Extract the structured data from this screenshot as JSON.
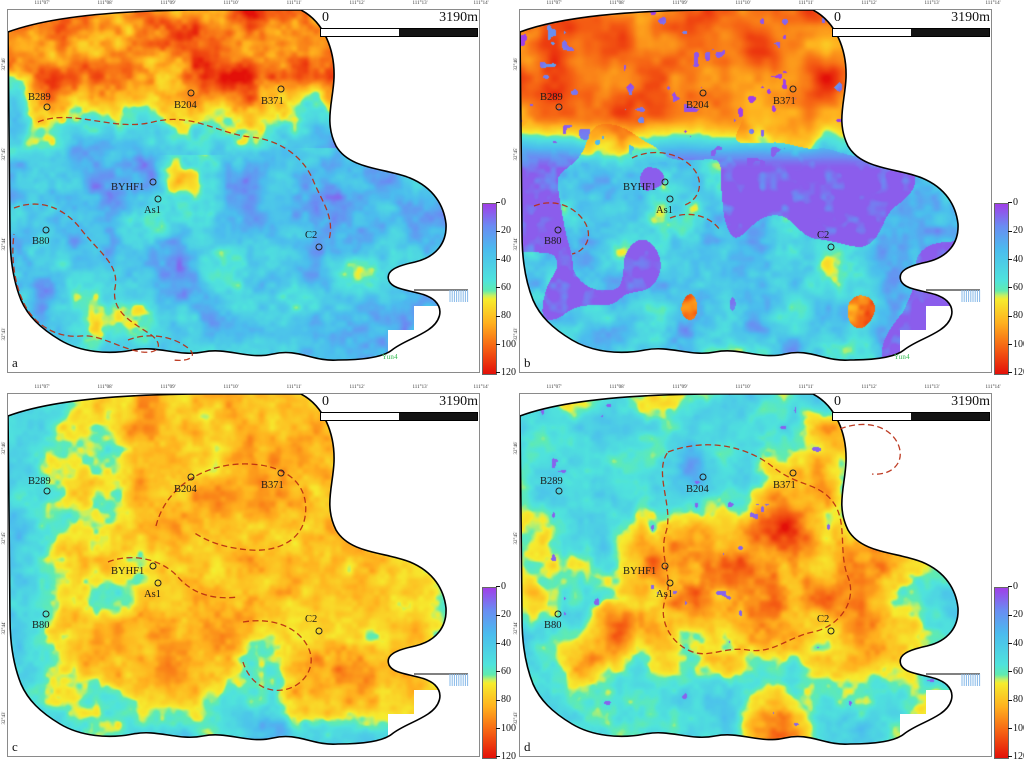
{
  "axis": {
    "top_labels": [
      "111°07'",
      "111°08'",
      "111°09'",
      "111°10'",
      "111°11'",
      "111°12'",
      "111°13'",
      "111°14'"
    ],
    "left_labels": [
      "32°46'",
      "32°45'",
      "32°44'",
      "32°43'"
    ]
  },
  "scalebar": {
    "left_label": "0",
    "right_label": "3190m"
  },
  "colorbar": {
    "ticks": [
      "0",
      "20",
      "40",
      "60",
      "80",
      "100",
      "120"
    ],
    "gradient_stops": [
      "#A03FE8",
      "#6A8CF2",
      "#4BBCEE",
      "#4FE3DC",
      "#60EBB0",
      "#C8F060",
      "#F6EC2E",
      "#FFB01E",
      "#F66414",
      "#E31009"
    ]
  },
  "wells": [
    "B289",
    "B204",
    "B371",
    "BYHF1",
    "As1",
    "B80",
    "C2"
  ],
  "panels": [
    {
      "letter": "a",
      "annotation": "Yun4"
    },
    {
      "letter": "b",
      "annotation": "Yun4"
    },
    {
      "letter": "c",
      "annotation": ""
    },
    {
      "letter": "d",
      "annotation": ""
    }
  ],
  "colors": {
    "boundary_outline": "#000000",
    "dashed_boundary": "#B92D12",
    "well_label": "#1A1A1A",
    "annotation_green": "#2EB84C",
    "hachure_blue": "#86B8E8"
  }
}
